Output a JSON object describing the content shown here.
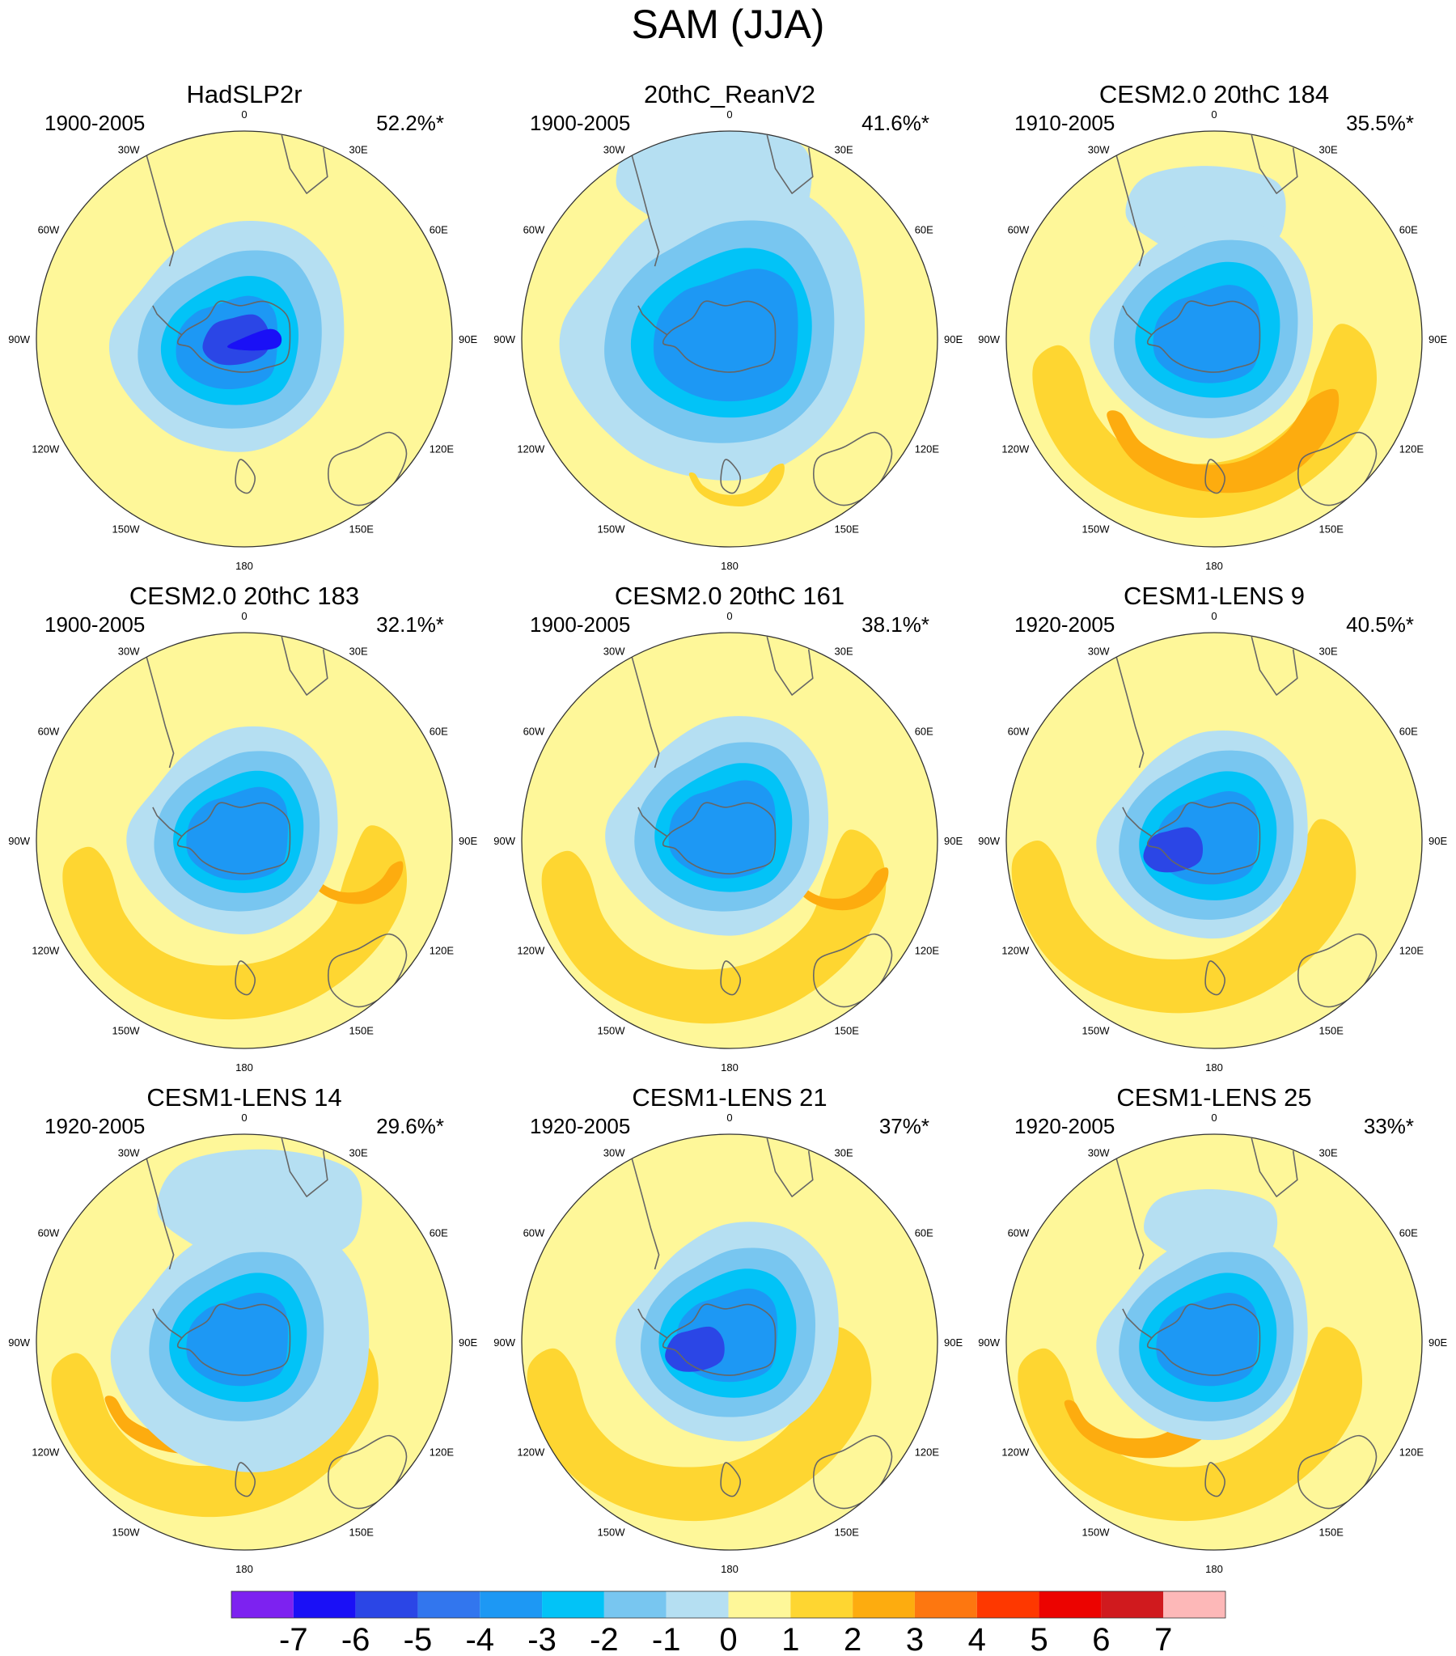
{
  "title": "SAM (JJA)",
  "colorbar": {
    "labels": [
      "-7",
      "-6",
      "-5",
      "-4",
      "-3",
      "-2",
      "-1",
      "0",
      "1",
      "2",
      "3",
      "4",
      "5",
      "6",
      "7"
    ],
    "colors": [
      "#7d22f0",
      "#1a10f6",
      "#2b46e6",
      "#3276ee",
      "#1d98f4",
      "#02c3f7",
      "#78c6f0",
      "#b5dff2",
      "#fef799",
      "#fed631",
      "#fdac0f",
      "#fd7710",
      "#fe3800",
      "#ec0300",
      "#d01a1e",
      "#fdb8b8"
    ]
  },
  "lon_labels": [
    "0",
    "30E",
    "60E",
    "90E",
    "120E",
    "150E",
    "180",
    "150W",
    "120W",
    "90W",
    "60W",
    "30W"
  ],
  "panels": [
    {
      "title": "HadSLP2r",
      "period": "1900-2005",
      "variance": "52.2%*"
    },
    {
      "title": "20thC_ReanV2",
      "period": "1900-2005",
      "variance": "41.6%*"
    },
    {
      "title": "CESM2.0 20thC 184",
      "period": "1910-2005",
      "variance": "35.5%*"
    },
    {
      "title": "CESM2.0 20thC 183",
      "period": "1900-2005",
      "variance": "32.1%*"
    },
    {
      "title": "CESM2.0 20thC 161",
      "period": "1900-2005",
      "variance": "38.1%*"
    },
    {
      "title": "CESM1-LENS 9",
      "period": "1920-2005",
      "variance": "40.5%*"
    },
    {
      "title": "CESM1-LENS 14",
      "period": "1920-2005",
      "variance": "29.6%*"
    },
    {
      "title": "CESM1-LENS 21",
      "period": "1920-2005",
      "variance": "37%*"
    },
    {
      "title": "CESM1-LENS 25",
      "period": "1920-2005",
      "variance": "33%*"
    }
  ]
}
